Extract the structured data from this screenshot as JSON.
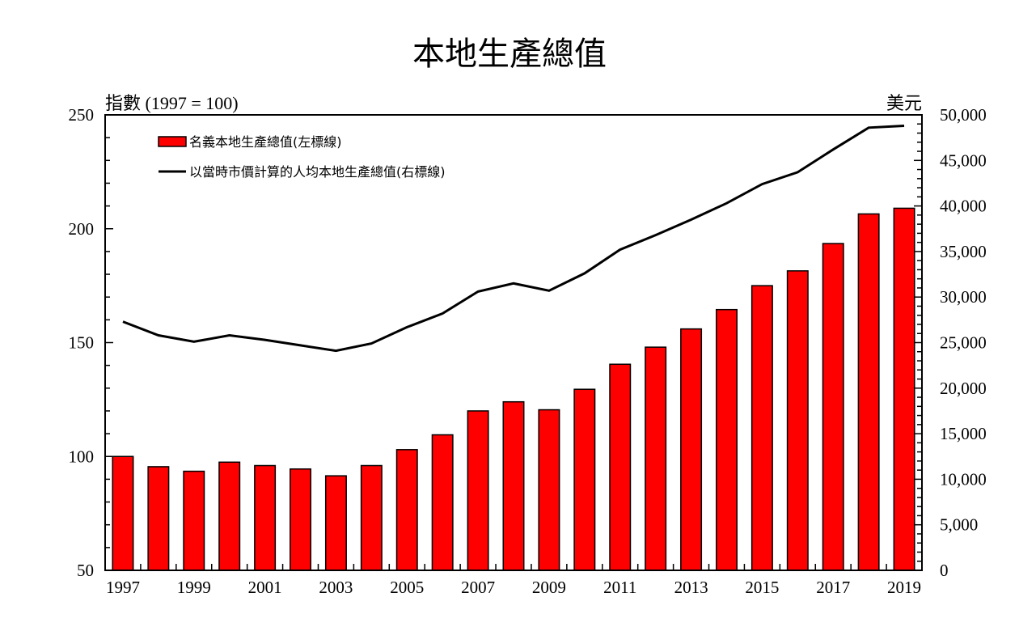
{
  "chart_data": {
    "type": "bar",
    "title": "本地生產總值",
    "left_axis_label": "指數 (1997 = 100)",
    "right_axis_label": "美元",
    "categories": [
      "1997",
      "1998",
      "1999",
      "2000",
      "2001",
      "2002",
      "2003",
      "2004",
      "2005",
      "2006",
      "2007",
      "2008",
      "2009",
      "2010",
      "2011",
      "2012",
      "2013",
      "2014",
      "2015",
      "2016",
      "2017",
      "2018",
      "2019"
    ],
    "x_tick_labels": [
      "1997",
      "1999",
      "2001",
      "2003",
      "2005",
      "2007",
      "2009",
      "2011",
      "2013",
      "2015",
      "2017",
      "2019"
    ],
    "left_ylim": [
      50,
      250
    ],
    "left_yticks": [
      50,
      100,
      150,
      200,
      250
    ],
    "right_ylim": [
      0,
      50000
    ],
    "right_yticks": [
      "0",
      "5,000",
      "10,000",
      "15,000",
      "20,000",
      "25,000",
      "30,000",
      "35,000",
      "40,000",
      "45,000",
      "50,000"
    ],
    "series": [
      {
        "name": "名義本地生產總值(左標線)",
        "type": "bar",
        "axis": "left",
        "color": "#ff0000",
        "values": [
          100,
          95.5,
          93.5,
          97.5,
          96,
          94.5,
          91.5,
          96,
          103,
          109.5,
          120,
          124,
          120.5,
          129.5,
          140.5,
          148,
          156,
          164.5,
          175,
          181.5,
          193.5,
          206.5,
          209
        ]
      },
      {
        "name": "以當時市價計算的人均本地生產總值(右標線)",
        "type": "line",
        "axis": "right",
        "color": "#000000",
        "values": [
          27300,
          25800,
          25100,
          25800,
          25300,
          24700,
          24100,
          24900,
          26700,
          28200,
          30600,
          31500,
          30700,
          32600,
          35200,
          36800,
          38500,
          40300,
          42400,
          43700,
          46200,
          48600,
          48800
        ]
      }
    ],
    "legend_position": "top-left",
    "grid": false
  }
}
